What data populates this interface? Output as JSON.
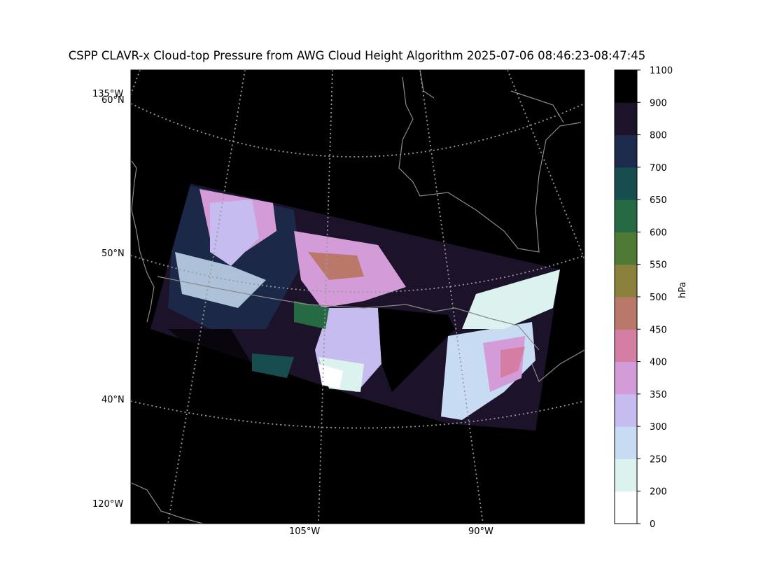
{
  "title": "CSPP CLAVR-x Cloud-top Pressure from AWG Cloud Height Algorithm 2025-07-06 08:46:23-08:47:45",
  "map": {
    "background": "#000000",
    "graticule_color": "#9a9a9a",
    "coastline_color": "#8a8a8a",
    "lat_labels": [
      "60°N",
      "50°N",
      "40°N"
    ],
    "lon_labels_left": [
      "135°W",
      "120°W"
    ],
    "lon_labels_bottom": [
      "105°W",
      "90°W"
    ]
  },
  "colorbar": {
    "unit": "hPa",
    "ticks": [
      "0",
      "200",
      "250",
      "300",
      "350",
      "400",
      "450",
      "500",
      "550",
      "600",
      "650",
      "700",
      "800",
      "900",
      "1100"
    ],
    "colors": [
      "#ffffff",
      "#dcf2ee",
      "#c7dcf2",
      "#c6bcf0",
      "#d39cd8",
      "#d57ea4",
      "#ba786a",
      "#8b7f3c",
      "#4e7a35",
      "#256a42",
      "#174d4e",
      "#1c2b4b",
      "#1c1229",
      "#000000"
    ]
  }
}
